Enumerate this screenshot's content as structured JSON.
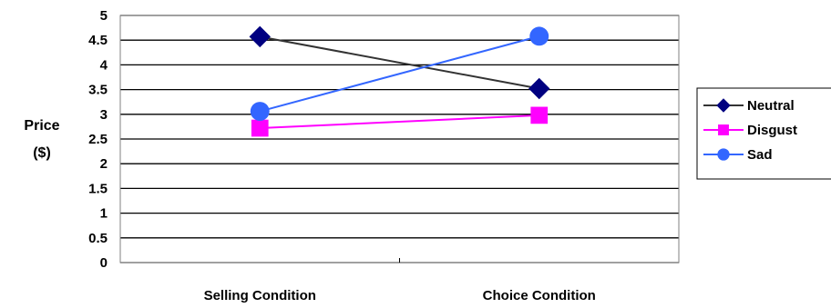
{
  "chart_data": {
    "type": "line",
    "categories": [
      "Selling Condition",
      "Choice Condition"
    ],
    "y_ticks": [
      "0",
      "0.5",
      "1",
      "1.5",
      "2",
      "2.5",
      "3",
      "3.5",
      "4",
      "4.5",
      "5"
    ],
    "ylim": [
      0,
      5
    ],
    "ylabel_line1": "Price",
    "ylabel_line2": "($)",
    "grid": true,
    "legend_position": "right",
    "series": [
      {
        "name": "Neutral",
        "values": [
          4.57,
          3.52
        ],
        "color": "#000080",
        "line_color": "#333333",
        "marker": "diamond"
      },
      {
        "name": "Disgust",
        "values": [
          2.72,
          2.98
        ],
        "color": "#ff00ff",
        "line_color": "#ff00ff",
        "marker": "square"
      },
      {
        "name": "Sad",
        "values": [
          3.06,
          4.58
        ],
        "color": "#3366ff",
        "line_color": "#3366ff",
        "marker": "circle"
      }
    ]
  }
}
